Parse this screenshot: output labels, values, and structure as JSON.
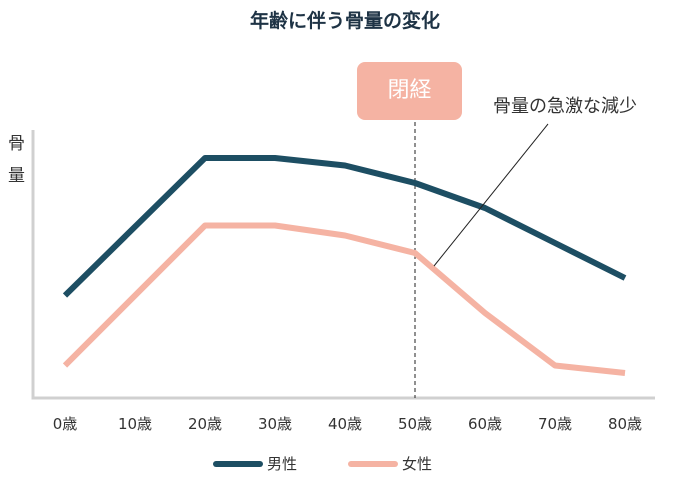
{
  "chart_data": {
    "type": "line",
    "title": "年齢に伴う骨量の変化",
    "ylabel": "骨量",
    "xlabel": "",
    "categories": [
      "0歳",
      "10歳",
      "20歳",
      "30歳",
      "40歳",
      "50歳",
      "60歳",
      "70歳",
      "80歳"
    ],
    "ylim": [
      0,
      100
    ],
    "grid": false,
    "legend": "bottom",
    "series": [
      {
        "name": "男性",
        "color": "#1d4e63",
        "values": [
          41,
          null,
          96,
          96,
          93,
          86,
          76,
          62,
          48
        ]
      },
      {
        "name": "女性",
        "color": "#f5b3a3",
        "values": [
          13,
          null,
          69,
          69,
          65,
          58,
          34,
          13,
          10
        ]
      }
    ],
    "annotations": {
      "menopause_label": "閉経",
      "menopause_at": "50歳",
      "decline_label": "骨量の急激な減少"
    }
  }
}
